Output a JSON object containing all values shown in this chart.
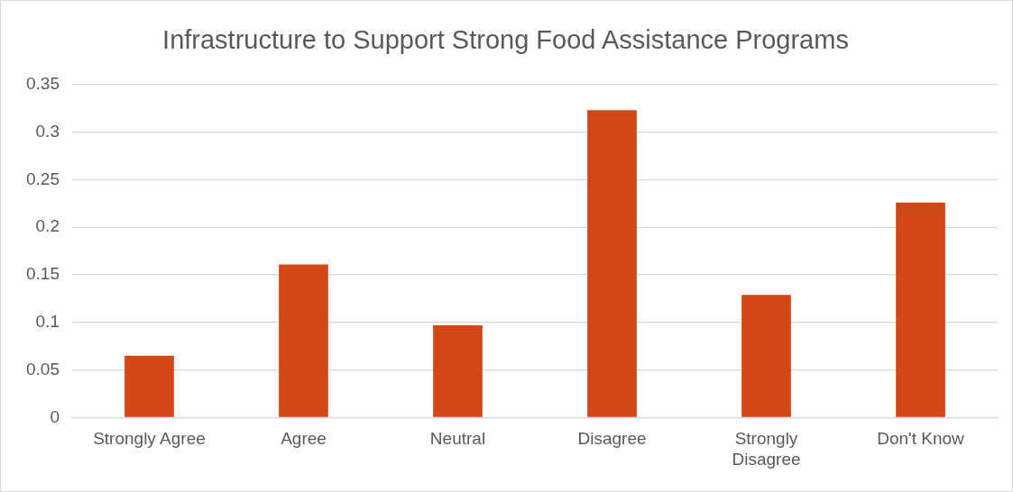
{
  "chart_data": {
    "type": "bar",
    "title": "Infrastructure to Support Strong Food Assistance Programs",
    "categories": [
      "Strongly Agree",
      "Agree",
      "Neutral",
      "Disagree",
      "Strongly Disagree",
      "Don't Know"
    ],
    "values": [
      0.065,
      0.161,
      0.097,
      0.323,
      0.129,
      0.226
    ],
    "color": "#d24716",
    "ylim": [
      0,
      0.35
    ],
    "yticks": [
      0,
      0.05,
      0.1,
      0.15,
      0.2,
      0.25,
      0.3,
      0.35
    ],
    "grid": "y",
    "legend": false
  }
}
